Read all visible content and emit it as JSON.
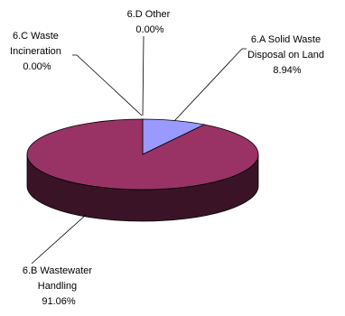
{
  "chart_data": {
    "type": "pie",
    "style": "3d",
    "title": "",
    "slices": [
      {
        "name": "6.A Solid Waste Disposal on Land",
        "value": 8.94,
        "color": "#9999ff",
        "label_lines": [
          "6.A Solid Waste",
          "Disposal on Land",
          "8.94%"
        ]
      },
      {
        "name": "6.B Wastewater Handling",
        "value": 91.06,
        "color": "#993366",
        "label_lines": [
          "6.B Wastewater",
          "Handling",
          "91.06%"
        ]
      },
      {
        "name": "6.C Waste Incineration",
        "value": 0.0,
        "color": "#ffffcc",
        "label_lines": [
          "6.C Waste",
          "Incineration",
          "0.00%"
        ]
      },
      {
        "name": "6.D Other",
        "value": 0.0,
        "color": "#ccffff",
        "label_lines": [
          "6.D Other",
          "0.00%"
        ]
      }
    ]
  }
}
